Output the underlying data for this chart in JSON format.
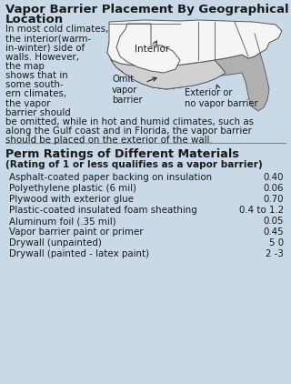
{
  "title_line1": "Vapor Barrier Placement By Geographical",
  "title_line2": "Location",
  "bg_color": "#c9d9e8",
  "intro_lines_left": [
    "In most cold climates, vapor barriers should be placed on",
    "the interior(warm-",
    "in-winter) side of",
    "walls. However,",
    "the map",
    "shows that in",
    "some south-",
    "ern climates,",
    "the vapor",
    "barrier should"
  ],
  "intro_lines_full": [
    "be omitted, while in hot and humid climates, such as",
    "along the Gulf coast and in Florida, the vapor barrier",
    "should be placed on the exterior of the wall."
  ],
  "table_title": "Perm Ratings of Different Materials",
  "table_subtitle": "(Rating of 1 or less qualifies as a vapor barrier)",
  "rows": [
    [
      "Asphalt-coated paper backing on insulation",
      "0.40"
    ],
    [
      "Polyethylene plastic (6 mil)",
      "0.06"
    ],
    [
      "Plywood with exterior glue",
      "0.70"
    ],
    [
      "Plastic-coated insulated foam sheathing",
      "0.4 to 1.2"
    ],
    [
      "Aluminum foil (.35 mil)",
      "0.05"
    ],
    [
      "Vapor barrier paint or primer",
      "0.45"
    ],
    [
      "Drywall (unpainted)",
      "5 0"
    ],
    [
      "Drywall (painted - latex paint)",
      "2 -3"
    ]
  ],
  "label_interior": "Interior",
  "label_omit": "Omit\nvapor\nbarrier",
  "label_exterior": "Exterior or\nno vapor barrier",
  "map_white": "#f5f5f5",
  "map_light_gray": "#d0d0d0",
  "map_dark_gray": "#b0b0b0",
  "map_outline": "#555555",
  "text_color": "#1a1a1a"
}
